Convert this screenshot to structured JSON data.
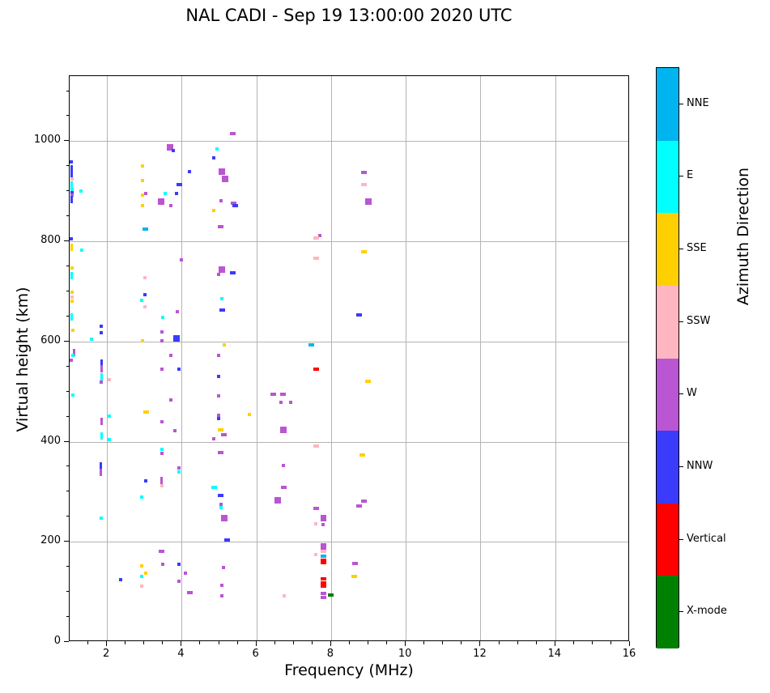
{
  "title": "NAL CADI - Sep 19 13:00:00 2020 UTC",
  "axes": {
    "xlabel": "Frequency (MHz)",
    "ylabel": "Virtual height (km)",
    "x_major_ticks": [
      "2",
      "4",
      "6",
      "8",
      "10",
      "12",
      "14",
      "16"
    ],
    "y_major_ticks": [
      "0",
      "200",
      "400",
      "600",
      "800",
      "1000"
    ]
  },
  "colorbar": {
    "label": "Azimuth Direction",
    "segments_top_to_bottom": [
      {
        "code": "NNE",
        "label": "NNE",
        "color": "#00B4F0"
      },
      {
        "code": "E",
        "label": "E",
        "color": "#00FFFF"
      },
      {
        "code": "SSE",
        "label": "SSE",
        "color": "#FFD000"
      },
      {
        "code": "SSW",
        "label": "SSW",
        "color": "#FFB6C1"
      },
      {
        "code": "W",
        "label": "W",
        "color": "#BA55D3"
      },
      {
        "code": "NNW",
        "label": "NNW",
        "color": "#3B3BFB"
      },
      {
        "code": "V",
        "label": "Vertical",
        "color": "#FF0000"
      },
      {
        "code": "X",
        "label": "X-mode",
        "color": "#008000"
      }
    ]
  },
  "chart_data": {
    "type": "scatter",
    "title": "NAL CADI - Sep 19 13:00:00 2020 UTC",
    "xlabel": "Frequency (MHz)",
    "ylabel": "Virtual height (km)",
    "xlim": [
      1,
      16
    ],
    "ylim": [
      0,
      1130
    ],
    "x_major_tick_values": [
      2,
      4,
      6,
      8,
      10,
      12,
      14,
      16
    ],
    "x_minor_step": 0.5,
    "y_major_tick_values": [
      0,
      200,
      400,
      600,
      800,
      1000
    ],
    "y_minor_step": 50,
    "grid": true,
    "legend_position": "right-colorbar",
    "colorbar_label": "Azimuth Direction",
    "categories": [
      "NNE",
      "E",
      "SSE",
      "SSW",
      "W",
      "NNW",
      "Vertical",
      "X-mode"
    ],
    "colors": {
      "NNE": "#00B4F0",
      "E": "#00FFFF",
      "SSE": "#FFD000",
      "SSW": "#FFB6C1",
      "W": "#BA55D3",
      "NNW": "#3B3BFB",
      "V": "#FF0000",
      "X": "#008000"
    },
    "points_format": [
      "freq_MHz",
      "virtual_height_km",
      "azimuth_dir_code",
      "mark_shape"
    ],
    "points": [
      [
        1.05,
        958,
        "NNW",
        "dot"
      ],
      [
        1.06,
        945,
        "NNW",
        "v"
      ],
      [
        1.06,
        932,
        "NNW",
        "v"
      ],
      [
        1.06,
        924,
        "SSW",
        "dot"
      ],
      [
        1.06,
        913,
        "E",
        "v"
      ],
      [
        1.06,
        903,
        "E",
        "dot"
      ],
      [
        1.06,
        898,
        "NNW",
        "dot"
      ],
      [
        1.06,
        892,
        "W",
        "dot"
      ],
      [
        1.06,
        884,
        "NNW",
        "v"
      ],
      [
        1.3,
        900,
        "E",
        "dot"
      ],
      [
        1.05,
        805,
        "NNW",
        "dot"
      ],
      [
        1.06,
        788,
        "SSE",
        "v"
      ],
      [
        1.33,
        782,
        "E",
        "dot"
      ],
      [
        1.06,
        747,
        "SSE",
        "dot"
      ],
      [
        1.06,
        731,
        "E",
        "v"
      ],
      [
        1.06,
        698,
        "SSE",
        "dot"
      ],
      [
        1.06,
        688,
        "SSW",
        "dot"
      ],
      [
        1.06,
        680,
        "SSE",
        "dot"
      ],
      [
        1.06,
        649,
        "E",
        "v"
      ],
      [
        1.09,
        622,
        "SSE",
        "dot"
      ],
      [
        1.59,
        604,
        "E",
        "dot"
      ],
      [
        1.85,
        630,
        "NNW",
        "dot"
      ],
      [
        1.85,
        618,
        "NNW",
        "dot"
      ],
      [
        1.11,
        578,
        "W",
        "v"
      ],
      [
        1.09,
        573,
        "E",
        "dot"
      ],
      [
        1.04,
        563,
        "W",
        "dot"
      ],
      [
        1.09,
        493,
        "E",
        "dot"
      ],
      [
        1.85,
        557,
        "NNW",
        "v"
      ],
      [
        1.85,
        545,
        "W",
        "v"
      ],
      [
        1.85,
        530,
        "E",
        "v"
      ],
      [
        1.85,
        519,
        "W",
        "dot"
      ],
      [
        2.06,
        524,
        "SSW",
        "dot"
      ],
      [
        2.06,
        451,
        "E",
        "dot"
      ],
      [
        1.85,
        440,
        "W",
        "v"
      ],
      [
        1.85,
        412,
        "E",
        "v"
      ],
      [
        2.06,
        404,
        "E",
        "dot"
      ],
      [
        1.83,
        352,
        "NNW",
        "v"
      ],
      [
        1.83,
        339,
        "W",
        "v"
      ],
      [
        1.85,
        248,
        "E",
        "dot"
      ],
      [
        2.37,
        124,
        "NNW",
        "dot"
      ],
      [
        2.95,
        951,
        "SSE",
        "dot"
      ],
      [
        2.95,
        921,
        "SSE",
        "dot"
      ],
      [
        2.95,
        892,
        "SSE",
        "dot"
      ],
      [
        3.04,
        895,
        "W",
        "dot"
      ],
      [
        2.95,
        871,
        "SSE",
        "dot"
      ],
      [
        3.02,
        824,
        "NNE",
        "h"
      ],
      [
        3.02,
        727,
        "SSW",
        "dot"
      ],
      [
        3.02,
        693,
        "NNW",
        "dot"
      ],
      [
        2.93,
        682,
        "E",
        "dot"
      ],
      [
        3.02,
        669,
        "SSW",
        "dot"
      ],
      [
        2.95,
        602,
        "SSE",
        "dot"
      ],
      [
        3.04,
        459,
        "SSE",
        "h"
      ],
      [
        3.04,
        322,
        "NNW",
        "dot"
      ],
      [
        2.93,
        289,
        "E",
        "dot"
      ],
      [
        2.93,
        152,
        "SSE",
        "dot"
      ],
      [
        3.04,
        137,
        "SSE",
        "dot"
      ],
      [
        2.93,
        131,
        "E",
        "dot"
      ],
      [
        2.93,
        111,
        "SSW",
        "dot"
      ],
      [
        3.69,
        988,
        "W",
        "sq"
      ],
      [
        3.77,
        982,
        "NNW",
        "dot"
      ],
      [
        4.21,
        940,
        "NNW",
        "dot"
      ],
      [
        3.93,
        914,
        "NNW",
        "h"
      ],
      [
        3.56,
        895,
        "E",
        "dot"
      ],
      [
        3.86,
        895,
        "NNW",
        "dot"
      ],
      [
        3.45,
        879,
        "W",
        "sq"
      ],
      [
        3.71,
        871,
        "W",
        "dot"
      ],
      [
        3.99,
        763,
        "W",
        "dot"
      ],
      [
        3.88,
        660,
        "W",
        "dot"
      ],
      [
        3.49,
        648,
        "E",
        "dot"
      ],
      [
        3.47,
        619,
        "W",
        "dot"
      ],
      [
        3.86,
        606,
        "NNW",
        "sq"
      ],
      [
        3.47,
        601,
        "W",
        "dot"
      ],
      [
        3.71,
        573,
        "W",
        "dot"
      ],
      [
        3.47,
        545,
        "W",
        "dot"
      ],
      [
        3.93,
        545,
        "NNW",
        "dot"
      ],
      [
        3.71,
        483,
        "W",
        "dot"
      ],
      [
        3.47,
        439,
        "W",
        "dot"
      ],
      [
        3.82,
        422,
        "W",
        "dot"
      ],
      [
        3.47,
        384,
        "E",
        "dot"
      ],
      [
        3.47,
        377,
        "W",
        "dot"
      ],
      [
        3.93,
        347,
        "W",
        "dot"
      ],
      [
        3.93,
        340,
        "E",
        "dot"
      ],
      [
        3.47,
        323,
        "W",
        "v"
      ],
      [
        3.47,
        312,
        "SSW",
        "dot"
      ],
      [
        3.45,
        181,
        "W",
        "h"
      ],
      [
        3.49,
        155,
        "W",
        "dot"
      ],
      [
        3.93,
        155,
        "NNW",
        "dot"
      ],
      [
        4.1,
        137,
        "W",
        "dot"
      ],
      [
        3.93,
        121,
        "W",
        "dot"
      ],
      [
        4.21,
        99,
        "W",
        "h"
      ],
      [
        5.36,
        1016,
        "W",
        "h"
      ],
      [
        4.95,
        984,
        "E",
        "dot"
      ],
      [
        4.86,
        967,
        "NNW",
        "dot"
      ],
      [
        5.08,
        940,
        "W",
        "sq"
      ],
      [
        5.16,
        924,
        "W",
        "sq"
      ],
      [
        5.05,
        881,
        "W",
        "dot"
      ],
      [
        5.38,
        876,
        "W",
        "h"
      ],
      [
        5.44,
        871,
        "NNW",
        "h"
      ],
      [
        4.86,
        861,
        "SSE",
        "dot"
      ],
      [
        5.05,
        830,
        "W",
        "h"
      ],
      [
        5.08,
        743,
        "W",
        "sq"
      ],
      [
        4.99,
        734,
        "W",
        "dot"
      ],
      [
        5.36,
        737,
        "NNW",
        "h"
      ],
      [
        5.08,
        685,
        "E",
        "dot"
      ],
      [
        5.08,
        662,
        "NNW",
        "h"
      ],
      [
        5.14,
        593,
        "SSE",
        "dot"
      ],
      [
        4.99,
        573,
        "W",
        "dot"
      ],
      [
        4.99,
        531,
        "NNW",
        "dot"
      ],
      [
        4.99,
        491,
        "W",
        "dot"
      ],
      [
        4.99,
        452,
        "W",
        "dot"
      ],
      [
        4.99,
        446,
        "NNW",
        "dot"
      ],
      [
        5.05,
        423,
        "SSE",
        "h"
      ],
      [
        5.14,
        414,
        "W",
        "h"
      ],
      [
        4.86,
        406,
        "W",
        "dot"
      ],
      [
        5.05,
        378,
        "W",
        "h"
      ],
      [
        4.86,
        309,
        "E",
        "h"
      ],
      [
        5.05,
        293,
        "NNW",
        "h"
      ],
      [
        5.05,
        275,
        "W",
        "dot"
      ],
      [
        5.05,
        268,
        "E",
        "dot"
      ],
      [
        5.14,
        247,
        "W",
        "sq"
      ],
      [
        5.21,
        204,
        "NNW",
        "h"
      ],
      [
        5.12,
        149,
        "W",
        "dot"
      ],
      [
        5.08,
        113,
        "W",
        "dot"
      ],
      [
        5.08,
        92,
        "W",
        "dot"
      ],
      [
        5.81,
        454,
        "SSE",
        "dot"
      ],
      [
        6.46,
        494,
        "W",
        "h"
      ],
      [
        6.72,
        494,
        "W",
        "h"
      ],
      [
        6.66,
        478,
        "W",
        "dot"
      ],
      [
        6.92,
        478,
        "W",
        "dot"
      ],
      [
        6.72,
        423,
        "W",
        "sq"
      ],
      [
        6.72,
        352,
        "W",
        "dot"
      ],
      [
        6.74,
        309,
        "W",
        "h"
      ],
      [
        6.58,
        283,
        "W",
        "sq"
      ],
      [
        6.74,
        92,
        "SSW",
        "dot"
      ],
      [
        7.48,
        594,
        "NNE",
        "h"
      ],
      [
        7.59,
        545,
        "V",
        "h"
      ],
      [
        7.7,
        811,
        "W",
        "dot"
      ],
      [
        7.59,
        806,
        "SSW",
        "h"
      ],
      [
        7.59,
        766,
        "SSW",
        "h"
      ],
      [
        8.76,
        653,
        "NNW",
        "h"
      ],
      [
        7.59,
        392,
        "SSW",
        "h"
      ],
      [
        7.59,
        266,
        "W",
        "h"
      ],
      [
        7.79,
        250,
        "W",
        "h"
      ],
      [
        7.79,
        244,
        "W",
        "h"
      ],
      [
        7.59,
        236,
        "SSW",
        "dot"
      ],
      [
        7.79,
        234,
        "W",
        "dot"
      ],
      [
        7.79,
        194,
        "W",
        "h"
      ],
      [
        7.79,
        187,
        "W",
        "h"
      ],
      [
        7.79,
        181,
        "SSW",
        "h"
      ],
      [
        7.59,
        175,
        "SSW",
        "dot"
      ],
      [
        7.79,
        171,
        "NNE",
        "h"
      ],
      [
        7.79,
        164,
        "V",
        "h"
      ],
      [
        7.79,
        159,
        "V",
        "h"
      ],
      [
        7.79,
        126,
        "V",
        "h"
      ],
      [
        7.79,
        118,
        "V",
        "h"
      ],
      [
        7.79,
        111,
        "V",
        "h"
      ],
      [
        7.79,
        97,
        "W",
        "h"
      ],
      [
        7.79,
        89,
        "W",
        "h"
      ],
      [
        7.96,
        94,
        "X",
        "dot"
      ],
      [
        8.03,
        94,
        "X",
        "dot"
      ],
      [
        8.87,
        937,
        "W",
        "h"
      ],
      [
        8.87,
        914,
        "SSW",
        "h"
      ],
      [
        9.0,
        879,
        "W",
        "sq"
      ],
      [
        8.87,
        779,
        "SSE",
        "h"
      ],
      [
        8.98,
        521,
        "SSE",
        "h"
      ],
      [
        8.83,
        373,
        "SSE",
        "h"
      ],
      [
        8.87,
        281,
        "W",
        "h"
      ],
      [
        8.76,
        271,
        "W",
        "h"
      ],
      [
        8.65,
        157,
        "W",
        "h"
      ],
      [
        8.63,
        131,
        "SSE",
        "h"
      ]
    ]
  }
}
